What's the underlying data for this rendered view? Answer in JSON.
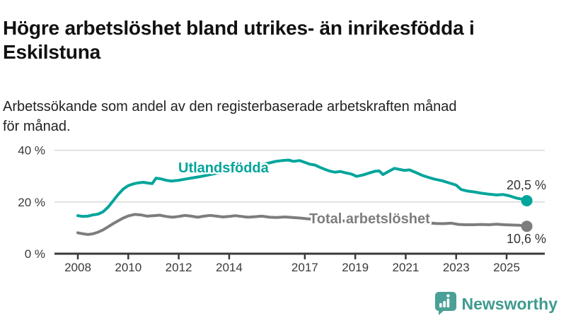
{
  "header": {
    "title_lines": [
      "Högre arbetslöshet bland utrikes- än inrikesfödda i",
      "Eskilstuna"
    ],
    "subtitle_lines": [
      "Arbetssökande som andel av den registerbaserade arbetskraften månad",
      "för månad."
    ]
  },
  "chart_data": {
    "type": "line",
    "title": "Högre arbetslöshet bland utrikes- än inrikesfödda i Eskilstuna",
    "subtitle": "Arbetssökande som andel av den registerbaserade arbetskraften månad för månad.",
    "unit": "%",
    "grid": "horizontal",
    "legend_position": "inline-labels",
    "x_axis": {
      "ticks": [
        2008,
        2010,
        2012,
        2014,
        2017,
        2019,
        2021,
        2023,
        2025
      ],
      "range": [
        2007.8,
        2026.3
      ]
    },
    "y_axis": {
      "ticks": [
        {
          "value": 40,
          "label": "40 %"
        },
        {
          "value": 20,
          "label": "20 %"
        },
        {
          "value": 0,
          "label": "0 %"
        }
      ],
      "range": [
        0,
        44
      ]
    },
    "series": [
      {
        "name": "Utlandsfödda",
        "color": "#00a59b",
        "end_value": 20.5,
        "end_label": "20,5 %",
        "points": [
          [
            2008.0,
            14.7
          ],
          [
            2008.2,
            14.4
          ],
          [
            2008.4,
            14.5
          ],
          [
            2008.6,
            15.0
          ],
          [
            2008.8,
            15.3
          ],
          [
            2009.0,
            16.2
          ],
          [
            2009.2,
            18.0
          ],
          [
            2009.4,
            20.4
          ],
          [
            2009.6,
            22.9
          ],
          [
            2009.8,
            25.0
          ],
          [
            2010.0,
            26.3
          ],
          [
            2010.2,
            27.0
          ],
          [
            2010.4,
            27.4
          ],
          [
            2010.6,
            27.6
          ],
          [
            2010.8,
            27.3
          ],
          [
            2010.95,
            27.1
          ],
          [
            2011.1,
            29.2
          ],
          [
            2011.3,
            28.9
          ],
          [
            2011.5,
            28.4
          ],
          [
            2011.7,
            28.1
          ],
          [
            2012.0,
            28.4
          ],
          [
            2012.3,
            28.9
          ],
          [
            2012.6,
            29.4
          ],
          [
            2012.9,
            29.9
          ],
          [
            2013.2,
            30.5
          ],
          [
            2013.5,
            31.1
          ],
          [
            2013.8,
            31.6
          ],
          [
            2014.1,
            32.1
          ],
          [
            2014.4,
            32.7
          ],
          [
            2014.7,
            33.2
          ],
          [
            2015.0,
            33.8
          ],
          [
            2015.3,
            34.4
          ],
          [
            2015.6,
            35.1
          ],
          [
            2015.85,
            35.7
          ],
          [
            2016.1,
            36.0
          ],
          [
            2016.35,
            36.2
          ],
          [
            2016.55,
            35.7
          ],
          [
            2016.8,
            36.0
          ],
          [
            2017.0,
            35.3
          ],
          [
            2017.2,
            34.6
          ],
          [
            2017.4,
            34.3
          ],
          [
            2017.6,
            33.4
          ],
          [
            2017.8,
            32.6
          ],
          [
            2018.0,
            31.9
          ],
          [
            2018.2,
            31.5
          ],
          [
            2018.4,
            31.8
          ],
          [
            2018.6,
            31.3
          ],
          [
            2018.85,
            30.8
          ],
          [
            2019.05,
            29.9
          ],
          [
            2019.3,
            30.4
          ],
          [
            2019.55,
            31.2
          ],
          [
            2019.8,
            31.9
          ],
          [
            2019.95,
            32.0
          ],
          [
            2020.1,
            30.6
          ],
          [
            2020.3,
            31.7
          ],
          [
            2020.55,
            33.0
          ],
          [
            2020.75,
            32.6
          ],
          [
            2020.95,
            32.2
          ],
          [
            2021.15,
            32.4
          ],
          [
            2021.4,
            31.4
          ],
          [
            2021.65,
            30.3
          ],
          [
            2021.9,
            29.5
          ],
          [
            2022.15,
            28.8
          ],
          [
            2022.45,
            28.2
          ],
          [
            2022.75,
            27.3
          ],
          [
            2023.0,
            26.5
          ],
          [
            2023.2,
            24.8
          ],
          [
            2023.45,
            24.2
          ],
          [
            2023.7,
            23.9
          ],
          [
            2024.0,
            23.4
          ],
          [
            2024.3,
            23.0
          ],
          [
            2024.6,
            22.7
          ],
          [
            2024.85,
            22.9
          ],
          [
            2025.1,
            22.4
          ],
          [
            2025.35,
            21.6
          ],
          [
            2025.6,
            21.1
          ],
          [
            2025.8,
            20.5
          ]
        ]
      },
      {
        "name": "Total arbetslöshet",
        "color": "#7d7d7d",
        "end_value": 10.6,
        "end_label": "10,6 %",
        "points": [
          [
            2008.0,
            8.1
          ],
          [
            2008.2,
            7.7
          ],
          [
            2008.4,
            7.4
          ],
          [
            2008.6,
            7.7
          ],
          [
            2008.8,
            8.3
          ],
          [
            2009.0,
            9.2
          ],
          [
            2009.2,
            10.4
          ],
          [
            2009.4,
            11.6
          ],
          [
            2009.6,
            12.7
          ],
          [
            2009.8,
            13.8
          ],
          [
            2010.0,
            14.6
          ],
          [
            2010.25,
            15.2
          ],
          [
            2010.5,
            15.0
          ],
          [
            2010.75,
            14.5
          ],
          [
            2011.0,
            14.7
          ],
          [
            2011.25,
            14.9
          ],
          [
            2011.5,
            14.4
          ],
          [
            2011.75,
            14.1
          ],
          [
            2012.0,
            14.4
          ],
          [
            2012.25,
            14.8
          ],
          [
            2012.5,
            14.5
          ],
          [
            2012.75,
            14.1
          ],
          [
            2013.0,
            14.5
          ],
          [
            2013.25,
            14.8
          ],
          [
            2013.5,
            14.5
          ],
          [
            2013.75,
            14.2
          ],
          [
            2014.0,
            14.4
          ],
          [
            2014.25,
            14.7
          ],
          [
            2014.5,
            14.4
          ],
          [
            2014.75,
            14.1
          ],
          [
            2015.0,
            14.3
          ],
          [
            2015.3,
            14.5
          ],
          [
            2015.6,
            14.1
          ],
          [
            2015.9,
            14.0
          ],
          [
            2016.2,
            14.2
          ],
          [
            2016.5,
            14.0
          ],
          [
            2016.8,
            13.8
          ],
          [
            2017.1,
            13.5
          ],
          [
            2017.5,
            13.2
          ],
          [
            2017.9,
            13.0
          ],
          [
            2018.3,
            12.8
          ],
          [
            2018.7,
            12.6
          ],
          [
            2019.1,
            12.4
          ],
          [
            2019.5,
            12.3
          ],
          [
            2019.9,
            12.5
          ],
          [
            2020.2,
            13.0
          ],
          [
            2020.45,
            13.4
          ],
          [
            2020.7,
            13.2
          ],
          [
            2021.0,
            12.8
          ],
          [
            2021.3,
            12.5
          ],
          [
            2021.6,
            12.1
          ],
          [
            2021.9,
            11.9
          ],
          [
            2022.2,
            11.7
          ],
          [
            2022.5,
            11.6
          ],
          [
            2022.8,
            11.8
          ],
          [
            2023.1,
            11.3
          ],
          [
            2023.4,
            11.2
          ],
          [
            2023.7,
            11.2
          ],
          [
            2024.0,
            11.3
          ],
          [
            2024.3,
            11.2
          ],
          [
            2024.6,
            11.4
          ],
          [
            2024.9,
            11.2
          ],
          [
            2025.2,
            11.1
          ],
          [
            2025.5,
            11.0
          ],
          [
            2025.8,
            10.6
          ]
        ]
      }
    ]
  },
  "footer": {
    "brand": "Newsworthy"
  },
  "colors": {
    "accent_teal": "#00a59b",
    "series_gray": "#7d7d7d",
    "grid": "#d9d9d9",
    "axis": "#3a3a3a",
    "tick_text": "#3a3a3a",
    "value_text": "#333333",
    "title_text": "#111111",
    "logo_bubble": "#4aa096",
    "logo_text": "#3f9b8f"
  }
}
